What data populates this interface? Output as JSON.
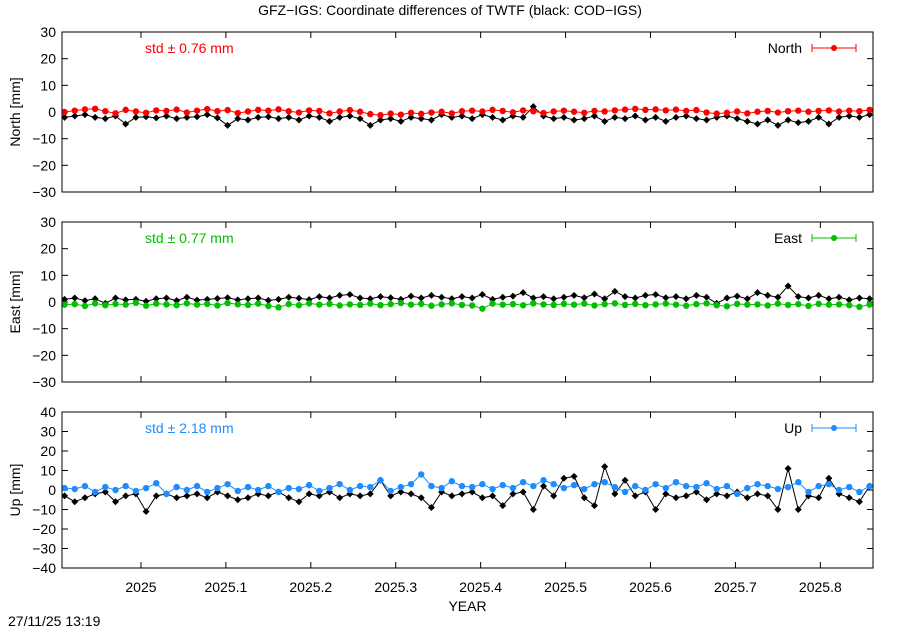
{
  "title": "GFZ−IGS: Coordinate differences of TWTF (black: COD−IGS)",
  "timestamp": "27/11/25 13:19",
  "chart_data": [
    {
      "type": "line",
      "ylabel": "North [mm]",
      "legend": "North",
      "legend_placement": "top-right",
      "annotation": "std ± 0.76 mm",
      "color": "#ff0000",
      "ylim": [
        -30,
        30
      ],
      "yticks": [
        30,
        20,
        10,
        0,
        -10,
        -20,
        -30
      ],
      "tick_labels": [
        "30",
        "20",
        "10",
        "0",
        "−10",
        "−20",
        "−30"
      ],
      "series": [
        {
          "values": [
            0,
            0.5,
            1,
            1.2,
            0.3,
            -0.5,
            0.8,
            0.2,
            -0.3,
            0.6,
            0.4,
            0.9,
            -0.2,
            0.5,
            1.1,
            0.3,
            0.7,
            -0.4,
            0.2,
            0.8,
            0.5,
            1.0,
            0.3,
            -0.2,
            0.6,
            0.4,
            -0.5,
            0.2,
            0.7,
            0.1,
            -0.8,
            -1.2,
            -0.6,
            -1.0,
            -0.3,
            -0.7,
            -0.2,
            0.1,
            -0.5,
            0.3,
            0.5,
            0.2,
            0.8,
            0.4,
            -0.1,
            0.6,
            0.3,
            -0.4,
            0.2,
            0.5,
            0.1,
            -0.3,
            0.4,
            0.2,
            0.6,
            0.9,
            1.2,
            0.8,
            1.0,
            0.6,
            0.9,
            0.4,
            0.7,
            -0.2,
            -0.6,
            -0.3,
            0.2,
            -0.5,
            0.1,
            0.4,
            -0.2,
            0.3,
            0.5,
            0.1,
            0.4,
            0.6,
            0.2,
            0.5,
            0.3,
            0.8
          ]
        },
        {
          "values": [
            -2,
            -1.5,
            -1,
            -2,
            -2.5,
            -1.5,
            -4.5,
            -2,
            -1.8,
            -2.2,
            -1.5,
            -2.5,
            -2,
            -1.8,
            -1,
            -2.2,
            -5,
            -2.5,
            -3,
            -2,
            -1.8,
            -2.5,
            -2,
            -3,
            -1.5,
            -2,
            -3.5,
            -2,
            -1.5,
            -2.5,
            -5,
            -3,
            -2.5,
            -3.5,
            -2,
            -2.5,
            -3,
            -1,
            -2,
            -1.5,
            -2.5,
            -1,
            -2,
            -3,
            -1.5,
            -2,
            2,
            -1.5,
            -2.5,
            -2,
            -3,
            -2.5,
            -1.5,
            -3.5,
            -2,
            -2.5,
            -1.5,
            -3,
            -2,
            -3.5,
            -2,
            -1.5,
            -2.5,
            -3,
            -2,
            -1.5,
            -2.5,
            -3.5,
            -4.5,
            -3,
            -5,
            -3,
            -4,
            -3.5,
            -2,
            -4.5,
            -2,
            -1.5,
            -2,
            -1
          ]
        }
      ]
    },
    {
      "type": "line",
      "ylabel": "East [mm]",
      "legend": "East",
      "legend_placement": "top-right",
      "annotation": "std ± 0.77 mm",
      "color": "#00c000",
      "ylim": [
        -30,
        30
      ],
      "yticks": [
        30,
        20,
        10,
        0,
        -10,
        -20,
        -30
      ],
      "tick_labels": [
        "30",
        "20",
        "10",
        "0",
        "−10",
        "−20",
        "−30"
      ],
      "series": [
        {
          "values": [
            -1,
            -0.8,
            -1.5,
            -0.5,
            -1.2,
            -0.7,
            -1,
            -0.3,
            -1.4,
            -0.6,
            -0.9,
            -1.2,
            -0.5,
            -1,
            -0.7,
            -1.3,
            -0.4,
            -0.9,
            -1.1,
            -0.6,
            -1.5,
            -2,
            -0.8,
            -1.2,
            -0.5,
            -1,
            -0.7,
            -1.3,
            -0.9,
            -1.1,
            -0.6,
            -1.2,
            -0.8,
            -0.4,
            -1,
            -0.7,
            -1.4,
            -0.9,
            -0.5,
            -1.1,
            -1.3,
            -2.5,
            -0.6,
            -1,
            -0.8,
            -1.2,
            -0.5,
            -0.9,
            -1.1,
            -0.7,
            -1,
            -0.6,
            -1.3,
            -0.8,
            -0.5,
            -1.1,
            -0.7,
            -1.2,
            -0.9,
            -0.6,
            -1,
            -1.4,
            -0.8,
            -0.5,
            -1.2,
            -1.6,
            -0.7,
            -1,
            -0.9,
            -1.3,
            -0.6,
            -1.1,
            -0.8,
            -1.5,
            -0.7,
            -1,
            -0.9,
            -1.2,
            -1.8,
            -1
          ]
        },
        {
          "values": [
            1,
            1.5,
            0.5,
            1.2,
            -0.5,
            1.5,
            0.8,
            1,
            0.3,
            1.2,
            1.5,
            0.5,
            1.8,
            0.7,
            1,
            1.3,
            1.6,
            0.8,
            1.2,
            1.5,
            0.6,
            1,
            1.8,
            1.4,
            0.9,
            2,
            1.5,
            2.5,
            2.8,
            1.5,
            1.2,
            2,
            1.6,
            1,
            2.2,
            1.5,
            2.5,
            1.8,
            1.2,
            2,
            1.5,
            2.8,
            1,
            1.8,
            2.2,
            3.5,
            1.5,
            2,
            1.2,
            1.8,
            2.5,
            1.6,
            3,
            1.2,
            4,
            2,
            1.5,
            2.5,
            2.8,
            1.6,
            2,
            1.2,
            2.5,
            1.8,
            -0.5,
            1.5,
            2.2,
            1.2,
            3.5,
            2.5,
            1.8,
            6,
            2,
            1.5,
            2.5,
            1.2,
            1.8,
            0.8,
            1.5,
            1.2
          ]
        }
      ]
    },
    {
      "type": "line",
      "ylabel": "Up [mm]",
      "xlabel": "YEAR",
      "legend": "Up",
      "legend_placement": "top-right",
      "annotation": "std ± 2.18 mm",
      "color": "#1e8cff",
      "ylim": [
        -40,
        40
      ],
      "yticks": [
        40,
        30,
        20,
        10,
        0,
        -10,
        -20,
        -30,
        -40
      ],
      "tick_labels": [
        "40",
        "30",
        "20",
        "10",
        "0",
        "−10",
        "−20",
        "−30",
        "−40"
      ],
      "series": [
        {
          "values": [
            1,
            0.5,
            2,
            -1,
            1.5,
            0,
            2,
            -0.5,
            1,
            3.5,
            -2,
            1.5,
            0,
            2,
            -1,
            1,
            3,
            -0.5,
            1.5,
            0,
            2,
            -1,
            1,
            0.5,
            2.5,
            -0.5,
            1,
            3,
            0,
            2,
            1.5,
            5,
            -0.5,
            1.5,
            3,
            8,
            2,
            1,
            4.5,
            2,
            1.5,
            3,
            0.5,
            2.5,
            1,
            4,
            2,
            5,
            3,
            1,
            2.5,
            0.5,
            3,
            4,
            1.5,
            -1,
            2,
            0,
            3,
            1,
            4,
            2,
            1.5,
            3.5,
            0.5,
            2,
            -2,
            1,
            3,
            2,
            0.5,
            1.5,
            4,
            -1,
            2,
            3,
            0,
            1.5,
            -1,
            2
          ]
        },
        {
          "values": [
            -3,
            -6,
            -4,
            -2,
            -1,
            -6,
            -3,
            -2,
            -11,
            -3,
            -2,
            -4,
            -3,
            -2,
            -4,
            -1,
            -3,
            -5,
            -4,
            -2,
            -3,
            -1,
            -4,
            -6,
            -2,
            -3,
            -1,
            -4,
            -2,
            -3,
            -2,
            5,
            -3,
            -1,
            -2,
            -4,
            -9,
            -1,
            -3,
            -2,
            -1,
            -4,
            -3,
            -8,
            -2,
            -1,
            -10,
            2,
            -3,
            6,
            7,
            -4,
            -8,
            12,
            -2,
            5,
            -3,
            -1,
            -10,
            -2,
            -4,
            -3,
            -1,
            -5,
            -2,
            -3,
            -1,
            -4,
            -2,
            -3,
            -10,
            11,
            -10,
            -3,
            -4,
            6,
            -2,
            -4,
            -6,
            2
          ]
        }
      ]
    }
  ],
  "x": [
    2024.91,
    2024.922,
    2024.934,
    2024.946,
    2024.958,
    2024.97,
    2024.982,
    2024.994,
    2025.006,
    2025.018,
    2025.03,
    2025.042,
    2025.054,
    2025.066,
    2025.078,
    2025.09,
    2025.102,
    2025.114,
    2025.126,
    2025.138,
    2025.15,
    2025.162,
    2025.174,
    2025.186,
    2025.198,
    2025.21,
    2025.222,
    2025.234,
    2025.246,
    2025.258,
    2025.27,
    2025.282,
    2025.294,
    2025.306,
    2025.318,
    2025.33,
    2025.342,
    2025.354,
    2025.366,
    2025.378,
    2025.39,
    2025.402,
    2025.414,
    2025.426,
    2025.438,
    2025.45,
    2025.462,
    2025.474,
    2025.486,
    2025.498,
    2025.51,
    2025.522,
    2025.534,
    2025.546,
    2025.558,
    2025.57,
    2025.582,
    2025.594,
    2025.606,
    2025.618,
    2025.63,
    2025.642,
    2025.654,
    2025.666,
    2025.678,
    2025.69,
    2025.702,
    2025.714,
    2025.726,
    2025.738,
    2025.75,
    2025.762,
    2025.774,
    2025.786,
    2025.798,
    2025.81,
    2025.822,
    2025.834,
    2025.846,
    2025.858
  ],
  "xlim": [
    2024.907,
    2025.862
  ],
  "xticks": [
    2025,
    2025.1,
    2025.2,
    2025.3,
    2025.4,
    2025.5,
    2025.6,
    2025.7,
    2025.8
  ],
  "xtick_labels": [
    "2025",
    "2025.1",
    "2025.2",
    "2025.3",
    "2025.4",
    "2025.5",
    "2025.6",
    "2025.7",
    "2025.8"
  ],
  "reference_color": "#000000",
  "grid": false
}
